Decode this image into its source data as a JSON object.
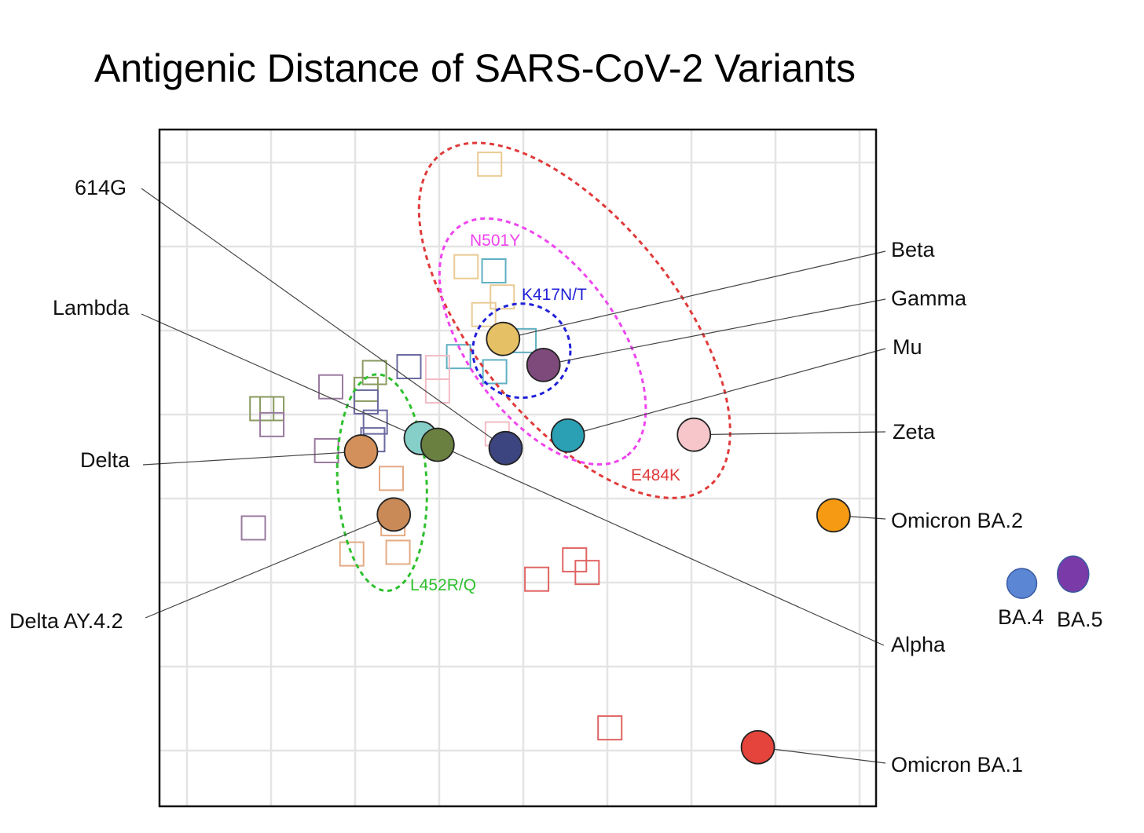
{
  "chart_data": {
    "type": "scatter",
    "title": "Antigenic Distance of SARS-CoV-2 Variants",
    "xlabel": "",
    "ylabel": "",
    "units": "antigenic units (grid spacing = 1), y increasing downward",
    "xlim": [
      -0.33,
      8.2
    ],
    "ylim": [
      -0.4,
      7.6
    ],
    "grid": true,
    "variants": [
      {
        "name": "614G",
        "x": 3.79,
        "y": 3.4,
        "color": "#3d4580",
        "label_side": "left"
      },
      {
        "name": "Lambda",
        "x": 2.78,
        "y": 3.28,
        "color": "#86cfc8",
        "label_side": "left"
      },
      {
        "name": "Delta",
        "x": 2.07,
        "y": 3.44,
        "color": "#d4905a",
        "label_side": "left"
      },
      {
        "name": "Delta AY.4.2",
        "x": 2.46,
        "y": 4.19,
        "color": "#c98a58",
        "label_side": "left"
      },
      {
        "name": "Beta",
        "x": 3.76,
        "y": 2.1,
        "color": "#e6c064",
        "label_side": "right"
      },
      {
        "name": "Gamma",
        "x": 4.24,
        "y": 2.41,
        "color": "#7e4a7c",
        "label_side": "right"
      },
      {
        "name": "Mu",
        "x": 4.53,
        "y": 3.25,
        "color": "#2b9fb4",
        "label_side": "right"
      },
      {
        "name": "Zeta",
        "x": 6.03,
        "y": 3.24,
        "color": "#f6c6ca",
        "label_side": "right"
      },
      {
        "name": "Omicron BA.2",
        "x": 7.69,
        "y": 4.2,
        "color": "#f59a12",
        "label_side": "right"
      },
      {
        "name": "Alpha",
        "x": 2.98,
        "y": 3.36,
        "color": "#6a8040",
        "label_side": "right"
      },
      {
        "name": "Omicron BA.1",
        "x": 6.79,
        "y": 6.96,
        "color": "#e4443c",
        "label_side": "right"
      },
      {
        "name": "BA.4",
        "x": 9.93,
        "y": 5.01,
        "color": "#5a86d4",
        "label_side": "below"
      },
      {
        "name": "BA.5",
        "x": 10.54,
        "y": 4.9,
        "color": "#7a3aa8",
        "label_side": "below"
      }
    ],
    "sera": [
      {
        "x": 3.6,
        "y": 0.02,
        "color": "#eacb94"
      },
      {
        "x": 3.32,
        "y": 1.24,
        "color": "#eacb94"
      },
      {
        "x": 3.65,
        "y": 1.29,
        "color": "#5fb0c2"
      },
      {
        "x": 3.75,
        "y": 1.6,
        "color": "#eacb94"
      },
      {
        "x": 3.53,
        "y": 1.81,
        "color": "#eacb94"
      },
      {
        "x": 4.01,
        "y": 2.12,
        "color": "#5fb0c2"
      },
      {
        "x": 3.23,
        "y": 2.31,
        "color": "#5fb0c2"
      },
      {
        "x": 3.66,
        "y": 2.49,
        "color": "#5fb0c2"
      },
      {
        "x": 2.64,
        "y": 2.43,
        "color": "#6a6aa0"
      },
      {
        "x": 2.98,
        "y": 2.44,
        "color": "#f2bcc4"
      },
      {
        "x": 2.98,
        "y": 2.72,
        "color": "#f2bcc4"
      },
      {
        "x": 2.23,
        "y": 2.5,
        "color": "#8a9a60"
      },
      {
        "x": 2.13,
        "y": 2.7,
        "color": "#8a9a60"
      },
      {
        "x": 2.13,
        "y": 2.85,
        "color": "#6a6aa0"
      },
      {
        "x": 2.24,
        "y": 3.09,
        "color": "#6a6aa0"
      },
      {
        "x": 2.21,
        "y": 3.3,
        "color": "#6a6aa0"
      },
      {
        "x": 1.71,
        "y": 2.67,
        "color": "#9a7aa0"
      },
      {
        "x": 0.89,
        "y": 2.93,
        "color": "#8a9a60"
      },
      {
        "x": 1.01,
        "y": 2.93,
        "color": "#8a9a60"
      },
      {
        "x": 1.01,
        "y": 3.12,
        "color": "#9a7aa0"
      },
      {
        "x": 1.66,
        "y": 3.43,
        "color": "#9a7aa0"
      },
      {
        "x": 3.69,
        "y": 3.23,
        "color": "#f2bcc4"
      },
      {
        "x": 2.43,
        "y": 3.76,
        "color": "#e4aa84"
      },
      {
        "x": 2.45,
        "y": 4.3,
        "color": "#e4aa84"
      },
      {
        "x": 1.96,
        "y": 4.66,
        "color": "#e4aa84"
      },
      {
        "x": 2.51,
        "y": 4.64,
        "color": "#e4aa84"
      },
      {
        "x": 0.79,
        "y": 4.35,
        "color": "#9a7aa0"
      },
      {
        "x": 4.61,
        "y": 4.73,
        "color": "#e06464"
      },
      {
        "x": 4.76,
        "y": 4.88,
        "color": "#e06464"
      },
      {
        "x": 4.16,
        "y": 4.96,
        "color": "#e06464"
      },
      {
        "x": 5.03,
        "y": 6.73,
        "color": "#e06464"
      }
    ],
    "clusters": [
      {
        "name": "E484K",
        "cx": 4.61,
        "cy": 1.88,
        "rx": 2.54,
        "ry": 1.2,
        "rotation_deg": 51,
        "color": "#e03a3a"
      },
      {
        "name": "N501Y",
        "cx": 4.23,
        "cy": 2.13,
        "rx": 1.69,
        "ry": 0.89,
        "rotation_deg": 54,
        "color": "#ee44ee"
      },
      {
        "name": "K417N/T",
        "cx": 3.98,
        "cy": 2.24,
        "rx": 0.58,
        "ry": 0.56,
        "rotation_deg": 0,
        "color": "#2020d8"
      },
      {
        "name": "L452R/Q",
        "cx": 2.32,
        "cy": 3.81,
        "rx": 0.53,
        "ry": 1.29,
        "rotation_deg": -3,
        "color": "#2ec02e"
      }
    ]
  }
}
